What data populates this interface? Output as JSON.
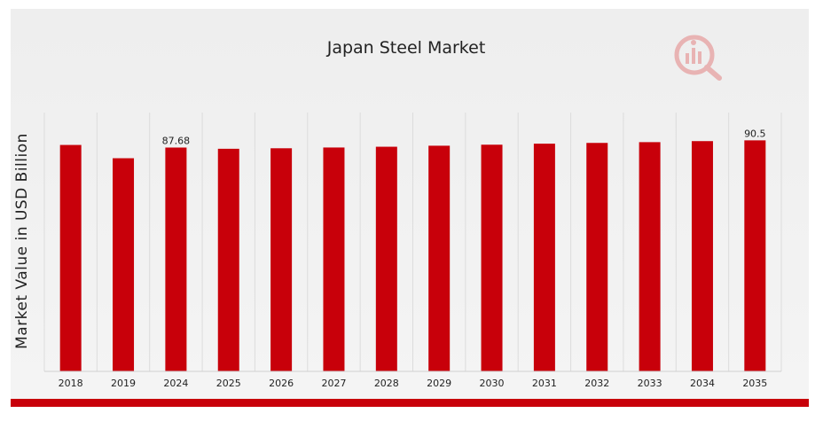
{
  "chart_data": {
    "type": "bar",
    "title": "Japan Steel Market",
    "xlabel": "",
    "ylabel": "Market Value in USD Billion",
    "categories": [
      "2018",
      "2019",
      "2024",
      "2025",
      "2026",
      "2027",
      "2028",
      "2029",
      "2030",
      "2031",
      "2032",
      "2033",
      "2034",
      "2035"
    ],
    "values": [
      88.7,
      83.5,
      87.68,
      87.2,
      87.4,
      87.7,
      88.0,
      88.4,
      88.8,
      89.2,
      89.5,
      89.8,
      90.2,
      90.5
    ],
    "data_labels": [
      {
        "category": "2024",
        "text": "87.68"
      },
      {
        "category": "2035",
        "text": "90.5"
      }
    ],
    "ylim": [
      0,
      100
    ],
    "grid": true,
    "bar_color": "#c8000a",
    "legend": "none"
  },
  "footer_accent_color": "#c8000a",
  "logo": {
    "icon": "market-research-logo-icon"
  }
}
